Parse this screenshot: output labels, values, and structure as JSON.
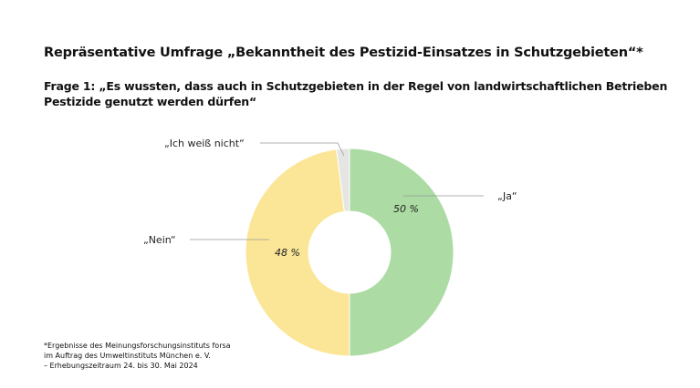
{
  "title": "Repräsentative Umfrage „Bekanntheit des Pestizid-Einsatzes in Schutzgebieten“*",
  "subtitle": "Frage 1: „Es wussten, dass auch in Schutzgebieten in der Regel von landwirtschaftlichen Betrieben Pestizide genutzt werden dürfen“",
  "footnote": "*Ergebnisse des Meinungsforschungsinstituts forsa\nim Auftrag des Umweltinstituts München e. V.\n– Erhebungszeitraum 24. bis 30. Mai 2024",
  "chart_data": {
    "type": "pie",
    "variant": "donut",
    "slices": [
      {
        "label": "„Ja“",
        "value": 50,
        "value_label": "50 %",
        "color": "#acdba3"
      },
      {
        "label": "„Nein“",
        "value": 48,
        "value_label": "48 %",
        "color": "#fbe697"
      },
      {
        "label": "„Ich weiß nicht“",
        "value": 2,
        "value_label": "",
        "color": "#e5e5e3"
      }
    ]
  }
}
